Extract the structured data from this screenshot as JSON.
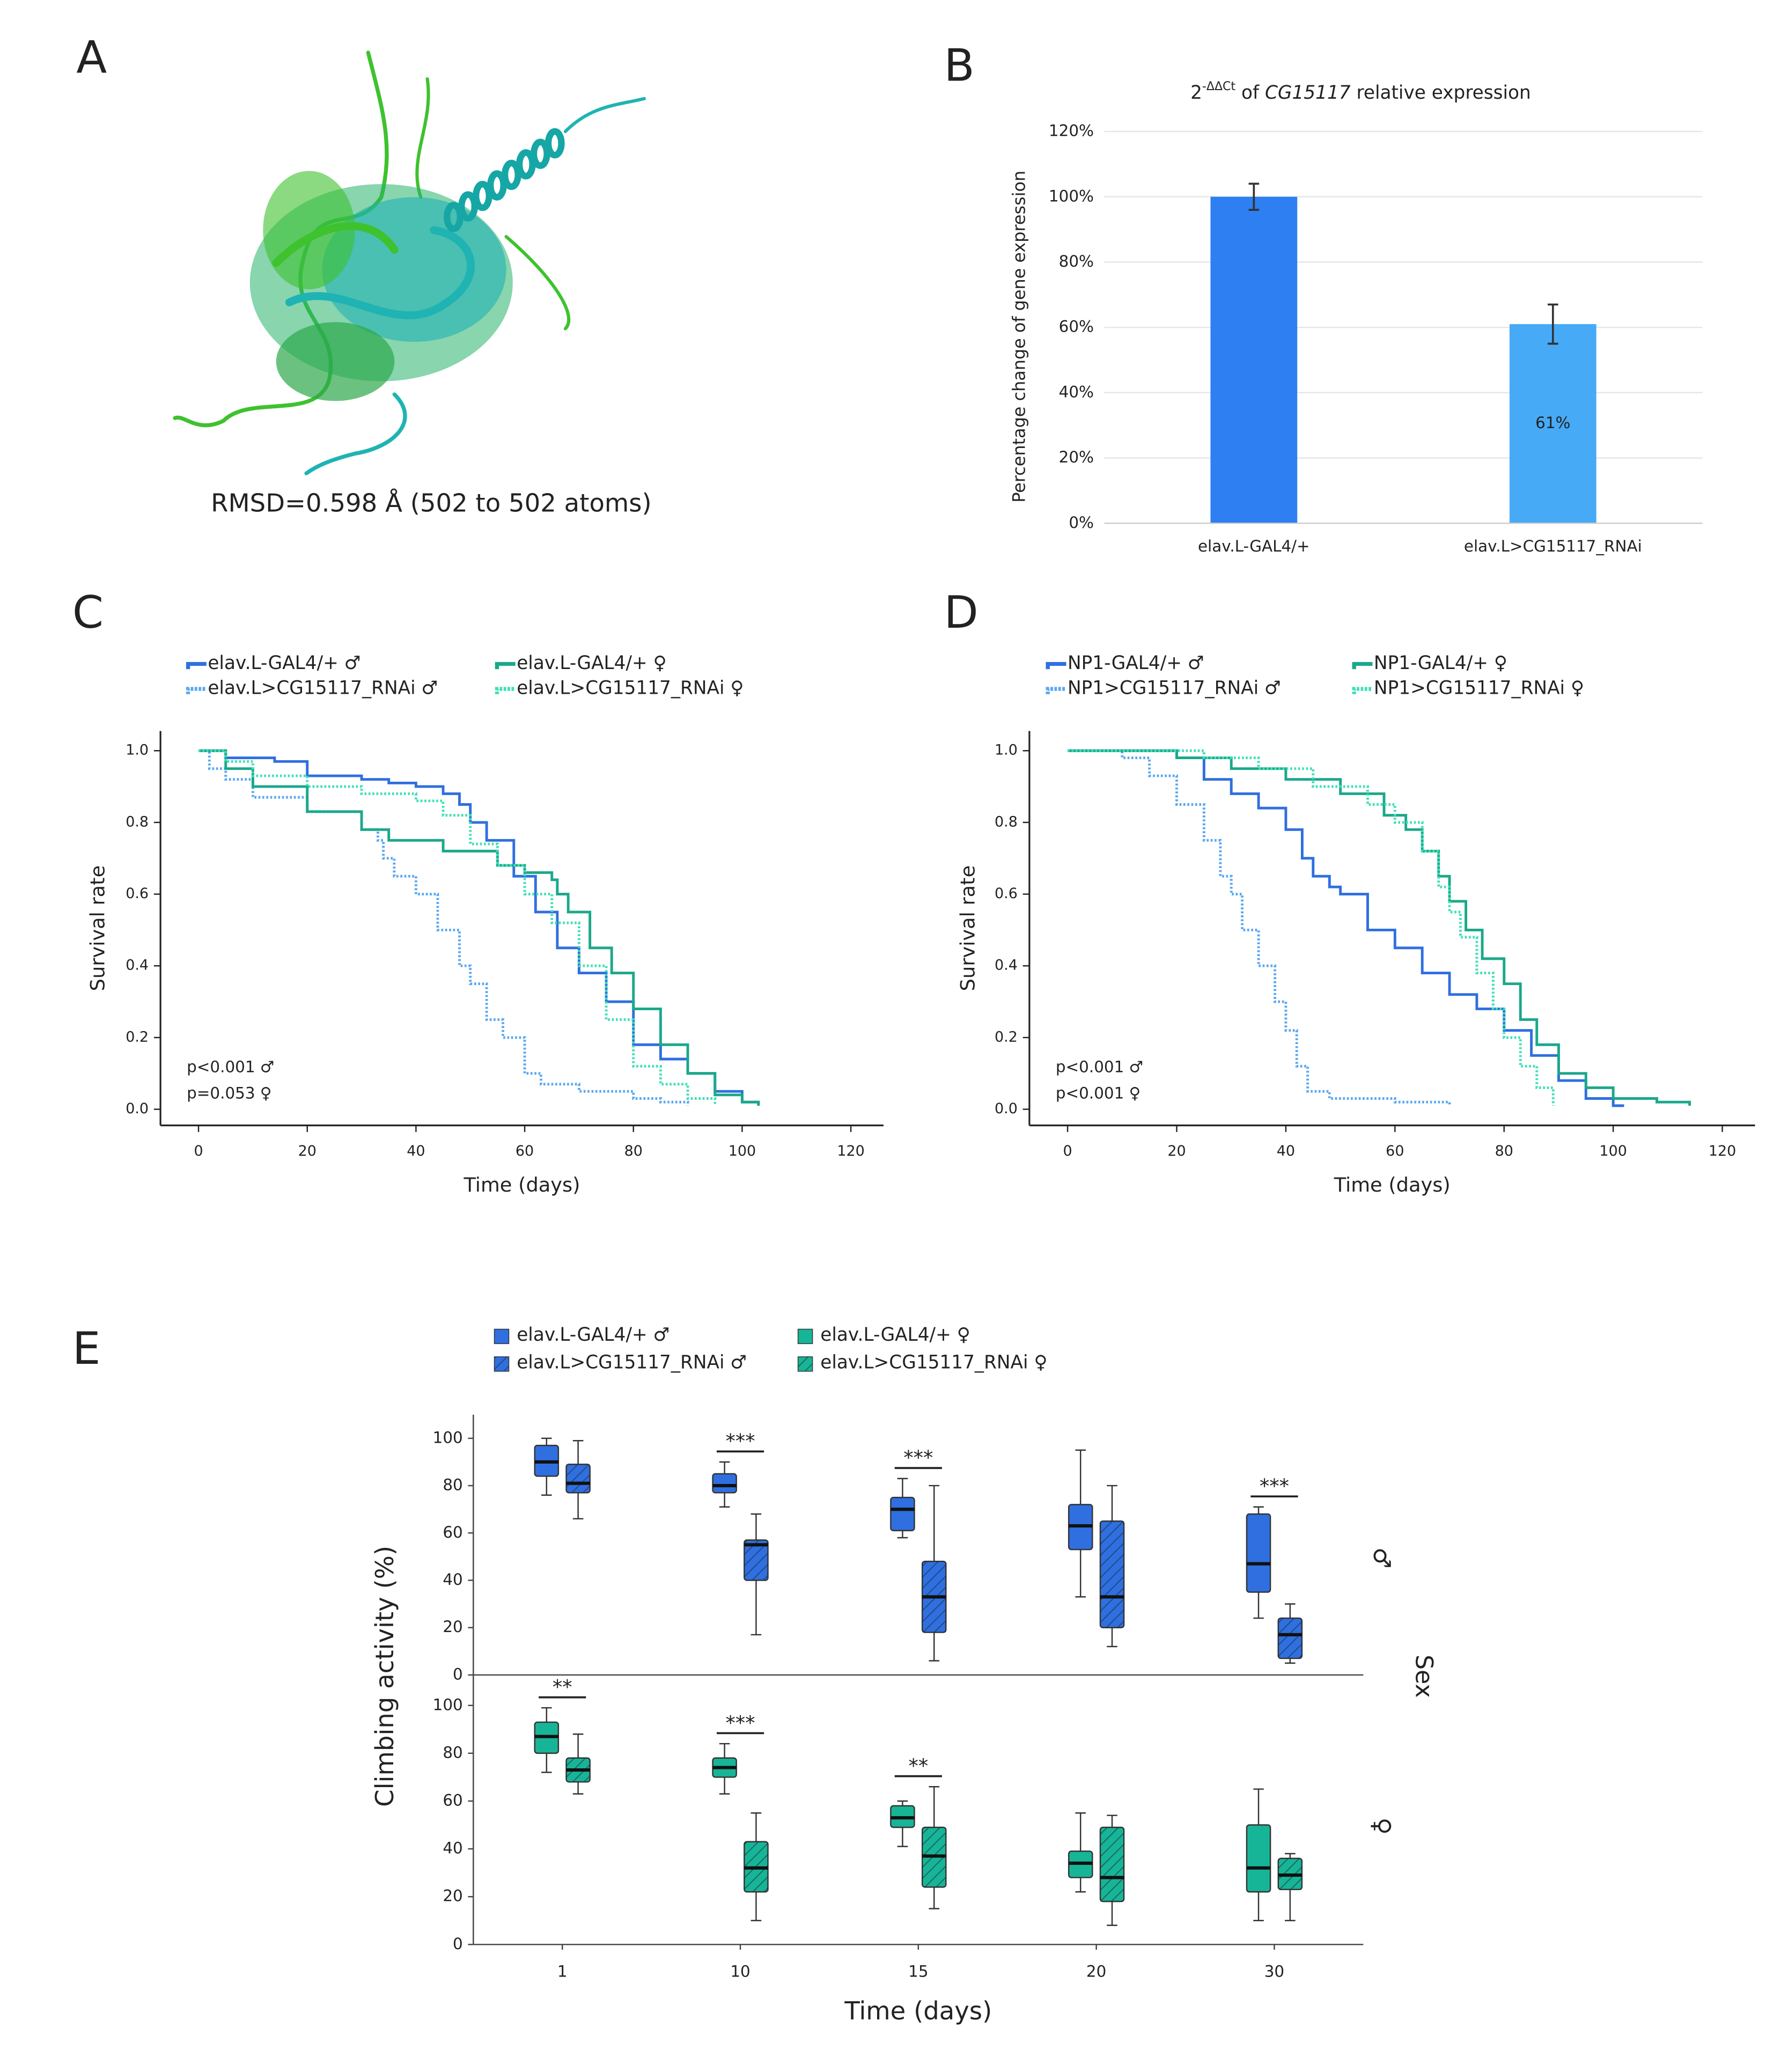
{
  "chart_data": [
    {
      "type": "structure",
      "panel_label": "A",
      "caption": "RMSD=0.598 Å (502 to 502 atoms)"
    },
    {
      "type": "bar",
      "panel_label": "B",
      "title": [
        {
          "text": "2"
        },
        {
          "text": "-ΔΔCt",
          "superscript": true
        },
        {
          "text": " of "
        },
        {
          "text": "CG15117",
          "italic": true
        },
        {
          "text": " relative expression"
        }
      ],
      "ylabel": "Percentage change of gene expression",
      "categories": [
        "elav.L-GAL4/+",
        "elav.L>CG15117_RNAi"
      ],
      "values": [
        100,
        61
      ],
      "errors": [
        4,
        6
      ],
      "value_labels": [
        null,
        "61%"
      ],
      "colors": [
        "#2d7ff2",
        "#47aaf7"
      ],
      "ylim": [
        0,
        120
      ],
      "yticks": [
        {
          "value": 0,
          "label": "0%"
        },
        {
          "value": 20,
          "label": "20%"
        },
        {
          "value": 40,
          "label": "40%"
        },
        {
          "value": 60,
          "label": "60%"
        },
        {
          "value": 80,
          "label": "80%"
        },
        {
          "value": 100,
          "label": "100%"
        },
        {
          "value": 120,
          "label": "120%"
        }
      ],
      "grid": true
    },
    {
      "type": "line",
      "panel_label": "C",
      "step": true,
      "xlabel": "Time (days)",
      "ylabel": "Survival rate",
      "xlim": [
        -7,
        126
      ],
      "ylim": [
        -0.045,
        1.055
      ],
      "xticks": [
        0,
        20,
        40,
        60,
        80,
        100,
        120
      ],
      "yticks": [
        {
          "value": 0,
          "label": "0.0"
        },
        0.2,
        0.4,
        0.6,
        0.8,
        {
          "value": 1,
          "label": "1.0"
        }
      ],
      "annotations": [
        "p<0.001 ♂",
        "p=0.053 ♀"
      ],
      "series": [
        {
          "name": "elav.L-GAL4/+ ♂",
          "color": "#2f6fe0",
          "dotted": false,
          "x": [
            0,
            5,
            14,
            20,
            30,
            35,
            40,
            45,
            48,
            50,
            53,
            58,
            62,
            66,
            70,
            75,
            80,
            85,
            90,
            95,
            100,
            103
          ],
          "values": [
            1.0,
            0.98,
            0.97,
            0.93,
            0.92,
            0.91,
            0.9,
            0.88,
            0.85,
            0.8,
            0.75,
            0.65,
            0.55,
            0.45,
            0.38,
            0.3,
            0.18,
            0.14,
            0.1,
            0.05,
            0.02,
            0.01
          ]
        },
        {
          "name": "elav.L>CG15117_RNAi ♂",
          "color": "#5aa8f0",
          "dotted": true,
          "x": [
            0,
            2,
            5,
            10,
            20,
            30,
            33,
            34,
            36,
            40,
            44,
            48,
            50,
            53,
            56,
            60,
            63,
            70,
            80,
            85,
            90
          ],
          "values": [
            1.0,
            0.95,
            0.92,
            0.87,
            0.83,
            0.78,
            0.75,
            0.7,
            0.65,
            0.6,
            0.5,
            0.4,
            0.35,
            0.25,
            0.2,
            0.1,
            0.07,
            0.05,
            0.03,
            0.02,
            0.01
          ]
        },
        {
          "name": "elav.L-GAL4/+ ♀",
          "color": "#1aa88a",
          "dotted": false,
          "x": [
            0,
            5,
            10,
            20,
            30,
            35,
            45,
            55,
            60,
            65,
            66,
            68,
            72,
            76,
            80,
            85,
            90,
            95,
            100,
            103
          ],
          "values": [
            1.0,
            0.95,
            0.9,
            0.83,
            0.78,
            0.75,
            0.72,
            0.68,
            0.66,
            0.64,
            0.6,
            0.55,
            0.45,
            0.38,
            0.28,
            0.18,
            0.1,
            0.04,
            0.02,
            0.01
          ]
        },
        {
          "name": "elav.L>CG15117_RNAi ♀",
          "color": "#3fe0b8",
          "dotted": true,
          "x": [
            0,
            5,
            10,
            20,
            30,
            40,
            45,
            50,
            55,
            60,
            65,
            70,
            75,
            80,
            85,
            90,
            95
          ],
          "values": [
            1.0,
            0.97,
            0.93,
            0.9,
            0.88,
            0.86,
            0.82,
            0.74,
            0.68,
            0.6,
            0.52,
            0.4,
            0.25,
            0.12,
            0.07,
            0.03,
            0.01
          ]
        }
      ]
    },
    {
      "type": "line",
      "panel_label": "D",
      "step": true,
      "xlabel": "Time (days)",
      "ylabel": "Survival rate",
      "xlim": [
        -7,
        126
      ],
      "ylim": [
        -0.045,
        1.055
      ],
      "xticks": [
        0,
        20,
        40,
        60,
        80,
        100,
        120
      ],
      "yticks": [
        {
          "value": 0,
          "label": "0.0"
        },
        0.2,
        0.4,
        0.6,
        0.8,
        {
          "value": 1,
          "label": "1.0"
        }
      ],
      "annotations": [
        "p<0.001 ♂",
        "p<0.001 ♀"
      ],
      "series": [
        {
          "name": "NP1-GAL4/+ ♂",
          "color": "#2f6fe0",
          "dotted": false,
          "x": [
            0,
            10,
            20,
            25,
            30,
            35,
            40,
            43,
            45,
            48,
            50,
            55,
            60,
            65,
            70,
            75,
            80,
            85,
            90,
            95,
            100,
            102
          ],
          "values": [
            1.0,
            1.0,
            0.98,
            0.92,
            0.88,
            0.84,
            0.78,
            0.7,
            0.65,
            0.62,
            0.6,
            0.5,
            0.45,
            0.38,
            0.32,
            0.28,
            0.22,
            0.15,
            0.08,
            0.03,
            0.01,
            0.01
          ]
        },
        {
          "name": "NP1>CG15117_RNAi ♂",
          "color": "#5aa8f0",
          "dotted": true,
          "x": [
            0,
            5,
            10,
            15,
            20,
            25,
            28,
            30,
            32,
            35,
            38,
            40,
            42,
            44,
            48,
            60,
            70
          ],
          "values": [
            1.0,
            1.0,
            0.98,
            0.93,
            0.85,
            0.75,
            0.65,
            0.6,
            0.5,
            0.4,
            0.3,
            0.22,
            0.12,
            0.05,
            0.03,
            0.02,
            0.01
          ]
        },
        {
          "name": "NP1-GAL4/+ ♀",
          "color": "#1aa88a",
          "dotted": false,
          "x": [
            0,
            15,
            20,
            30,
            40,
            50,
            58,
            62,
            65,
            68,
            70,
            73,
            76,
            80,
            83,
            86,
            90,
            95,
            100,
            108,
            114
          ],
          "values": [
            1.0,
            1.0,
            0.98,
            0.95,
            0.92,
            0.88,
            0.82,
            0.78,
            0.72,
            0.65,
            0.58,
            0.5,
            0.42,
            0.35,
            0.25,
            0.18,
            0.1,
            0.06,
            0.03,
            0.02,
            0.01
          ]
        },
        {
          "name": "NP1>CG15117_RNAi ♀",
          "color": "#3fe0b8",
          "dotted": true,
          "x": [
            0,
            15,
            25,
            35,
            45,
            55,
            60,
            65,
            68,
            70,
            72,
            75,
            78,
            80,
            83,
            86,
            89
          ],
          "values": [
            1.0,
            1.0,
            0.98,
            0.95,
            0.9,
            0.85,
            0.8,
            0.72,
            0.62,
            0.55,
            0.48,
            0.38,
            0.28,
            0.2,
            0.12,
            0.06,
            0.01
          ]
        }
      ]
    },
    {
      "type": "box",
      "panel_label": "E",
      "xlabel": "Time (days)",
      "ylabel": "Climbing activity (%)",
      "facet_title": "Sex",
      "categories": [
        "1",
        "10",
        "15",
        "20",
        "30"
      ],
      "ylim": [
        0,
        110
      ],
      "yticks": [
        0,
        20,
        40,
        60,
        80,
        100
      ],
      "facets": [
        {
          "label": "♂",
          "significance": [
            null,
            "***",
            "***",
            null,
            "***"
          ]
        },
        {
          "label": "♀",
          "significance": [
            "**",
            "***",
            "**",
            null,
            null
          ]
        }
      ],
      "series": [
        {
          "name": "elav.L-GAL4/+ ♂",
          "color": "#2f6fe0",
          "hatched": false,
          "facet": 0,
          "boxes": [
            {
              "min": 76,
              "q1": 84,
              "median": 90,
              "q3": 97,
              "max": 100
            },
            {
              "min": 71,
              "q1": 77,
              "median": 80,
              "q3": 85,
              "max": 90
            },
            {
              "min": 58,
              "q1": 61,
              "median": 70,
              "q3": 75,
              "max": 83
            },
            {
              "min": 33,
              "q1": 53,
              "median": 63,
              "q3": 72,
              "max": 95
            },
            {
              "min": 24,
              "q1": 35,
              "median": 47,
              "q3": 68,
              "max": 71
            }
          ]
        },
        {
          "name": "elav.L>CG15117_RNAi ♂",
          "color": "#2f6fe0",
          "hatched": true,
          "facet": 0,
          "boxes": [
            {
              "min": 66,
              "q1": 77,
              "median": 81,
              "q3": 89,
              "max": 99
            },
            {
              "min": 17,
              "q1": 40,
              "median": 55,
              "q3": 57,
              "max": 68
            },
            {
              "min": 6,
              "q1": 18,
              "median": 33,
              "q3": 48,
              "max": 80
            },
            {
              "min": 12,
              "q1": 20,
              "median": 33,
              "q3": 65,
              "max": 80
            },
            {
              "min": 5,
              "q1": 7,
              "median": 17,
              "q3": 24,
              "max": 30
            }
          ]
        },
        {
          "name": "elav.L-GAL4/+ ♀",
          "color": "#17b597",
          "hatched": false,
          "facet": 1,
          "boxes": [
            {
              "min": 72,
              "q1": 80,
              "median": 87,
              "q3": 93,
              "max": 99
            },
            {
              "min": 63,
              "q1": 70,
              "median": 74,
              "q3": 78,
              "max": 84
            },
            {
              "min": 41,
              "q1": 49,
              "median": 53,
              "q3": 58,
              "max": 60
            },
            {
              "min": 22,
              "q1": 28,
              "median": 34,
              "q3": 39,
              "max": 55
            },
            {
              "min": 10,
              "q1": 22,
              "median": 32,
              "q3": 50,
              "max": 65
            }
          ]
        },
        {
          "name": "elav.L>CG15117_RNAi ♀",
          "color": "#17b597",
          "hatched": true,
          "facet": 1,
          "boxes": [
            {
              "min": 63,
              "q1": 68,
              "median": 73,
              "q3": 78,
              "max": 88
            },
            {
              "min": 10,
              "q1": 22,
              "median": 32,
              "q3": 43,
              "max": 55
            },
            {
              "min": 15,
              "q1": 24,
              "median": 37,
              "q3": 49,
              "max": 66
            },
            {
              "min": 8,
              "q1": 18,
              "median": 28,
              "q3": 49,
              "max": 54
            },
            {
              "min": 10,
              "q1": 23,
              "median": 29,
              "q3": 36,
              "max": 38
            }
          ]
        }
      ]
    }
  ]
}
